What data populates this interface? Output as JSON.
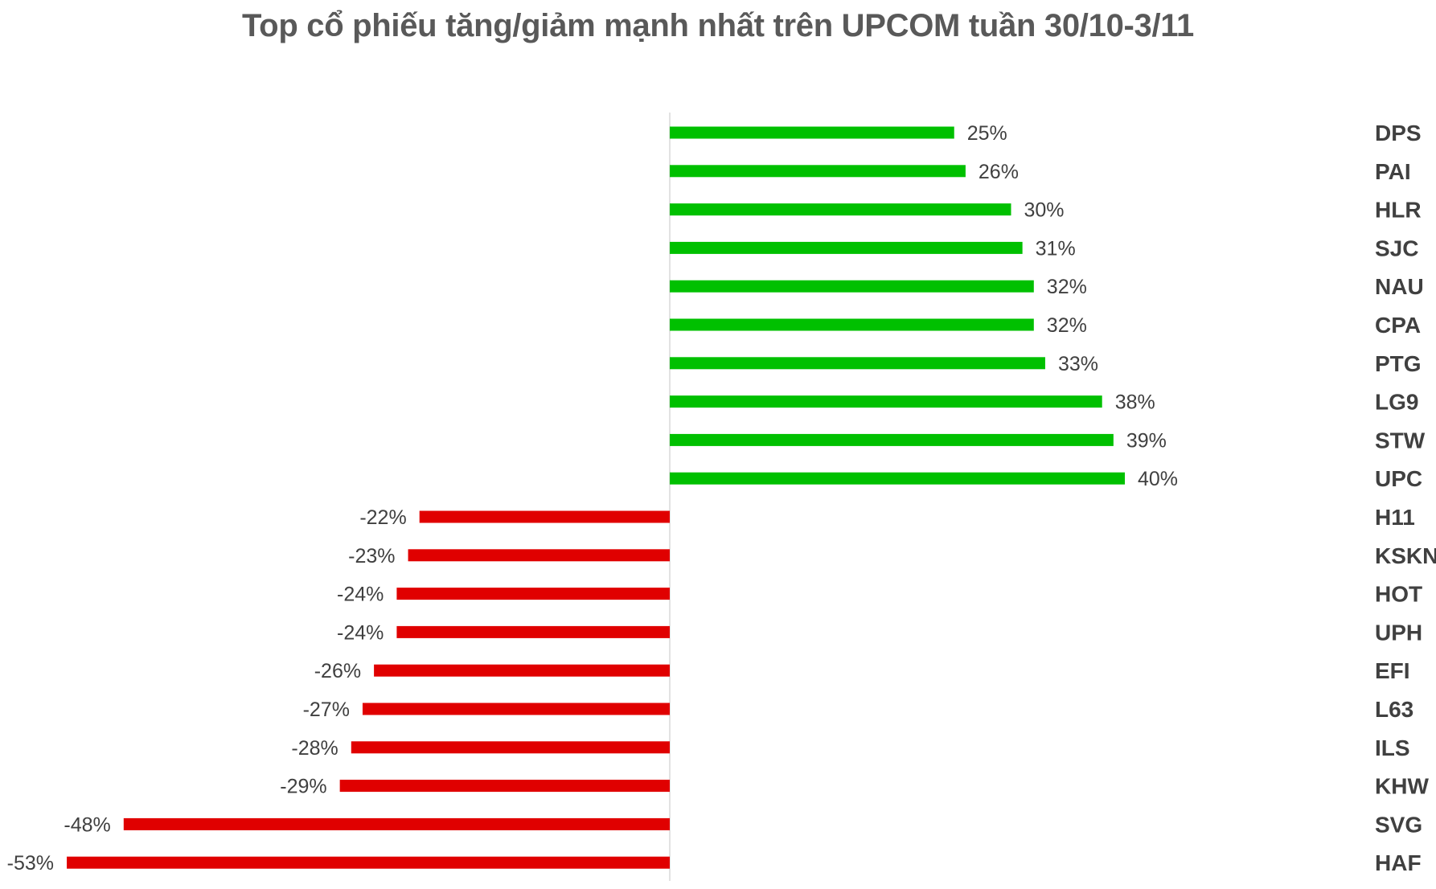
{
  "chart_data": {
    "type": "bar",
    "orientation": "horizontal",
    "title": "Top cổ phiếu tăng/giảm mạnh nhất trên UPCOM tuần 30/10-3/11",
    "categories": [
      "DPS",
      "PAI",
      "HLR",
      "SJC",
      "NAU",
      "CPA",
      "PTG",
      "LG9",
      "STW",
      "UPC",
      "H11",
      "KSKN",
      "HOT",
      "UPH",
      "EFI",
      "L63",
      "ILS",
      "KHW",
      "SVG",
      "HAF"
    ],
    "values": [
      25,
      26,
      30,
      31,
      32,
      32,
      33,
      38,
      39,
      40,
      -22,
      -23,
      -24,
      -24,
      -26,
      -27,
      -28,
      -29,
      -48,
      -53
    ],
    "value_labels": [
      "25%",
      "26%",
      "30%",
      "31%",
      "32%",
      "32%",
      "33%",
      "38%",
      "39%",
      "40%",
      "-22%",
      "-23%",
      "-24%",
      "-24%",
      "-26%",
      "-27%",
      "-28%",
      "-29%",
      "-48%",
      "-53%"
    ],
    "unit": "%",
    "xlim": [
      -53,
      40
    ],
    "grid": false,
    "legend": "none",
    "colors": {
      "positive": "#00C000",
      "negative": "#E00000",
      "axis": "#D9D9D9",
      "title": "#595959",
      "text": "#404040"
    }
  }
}
